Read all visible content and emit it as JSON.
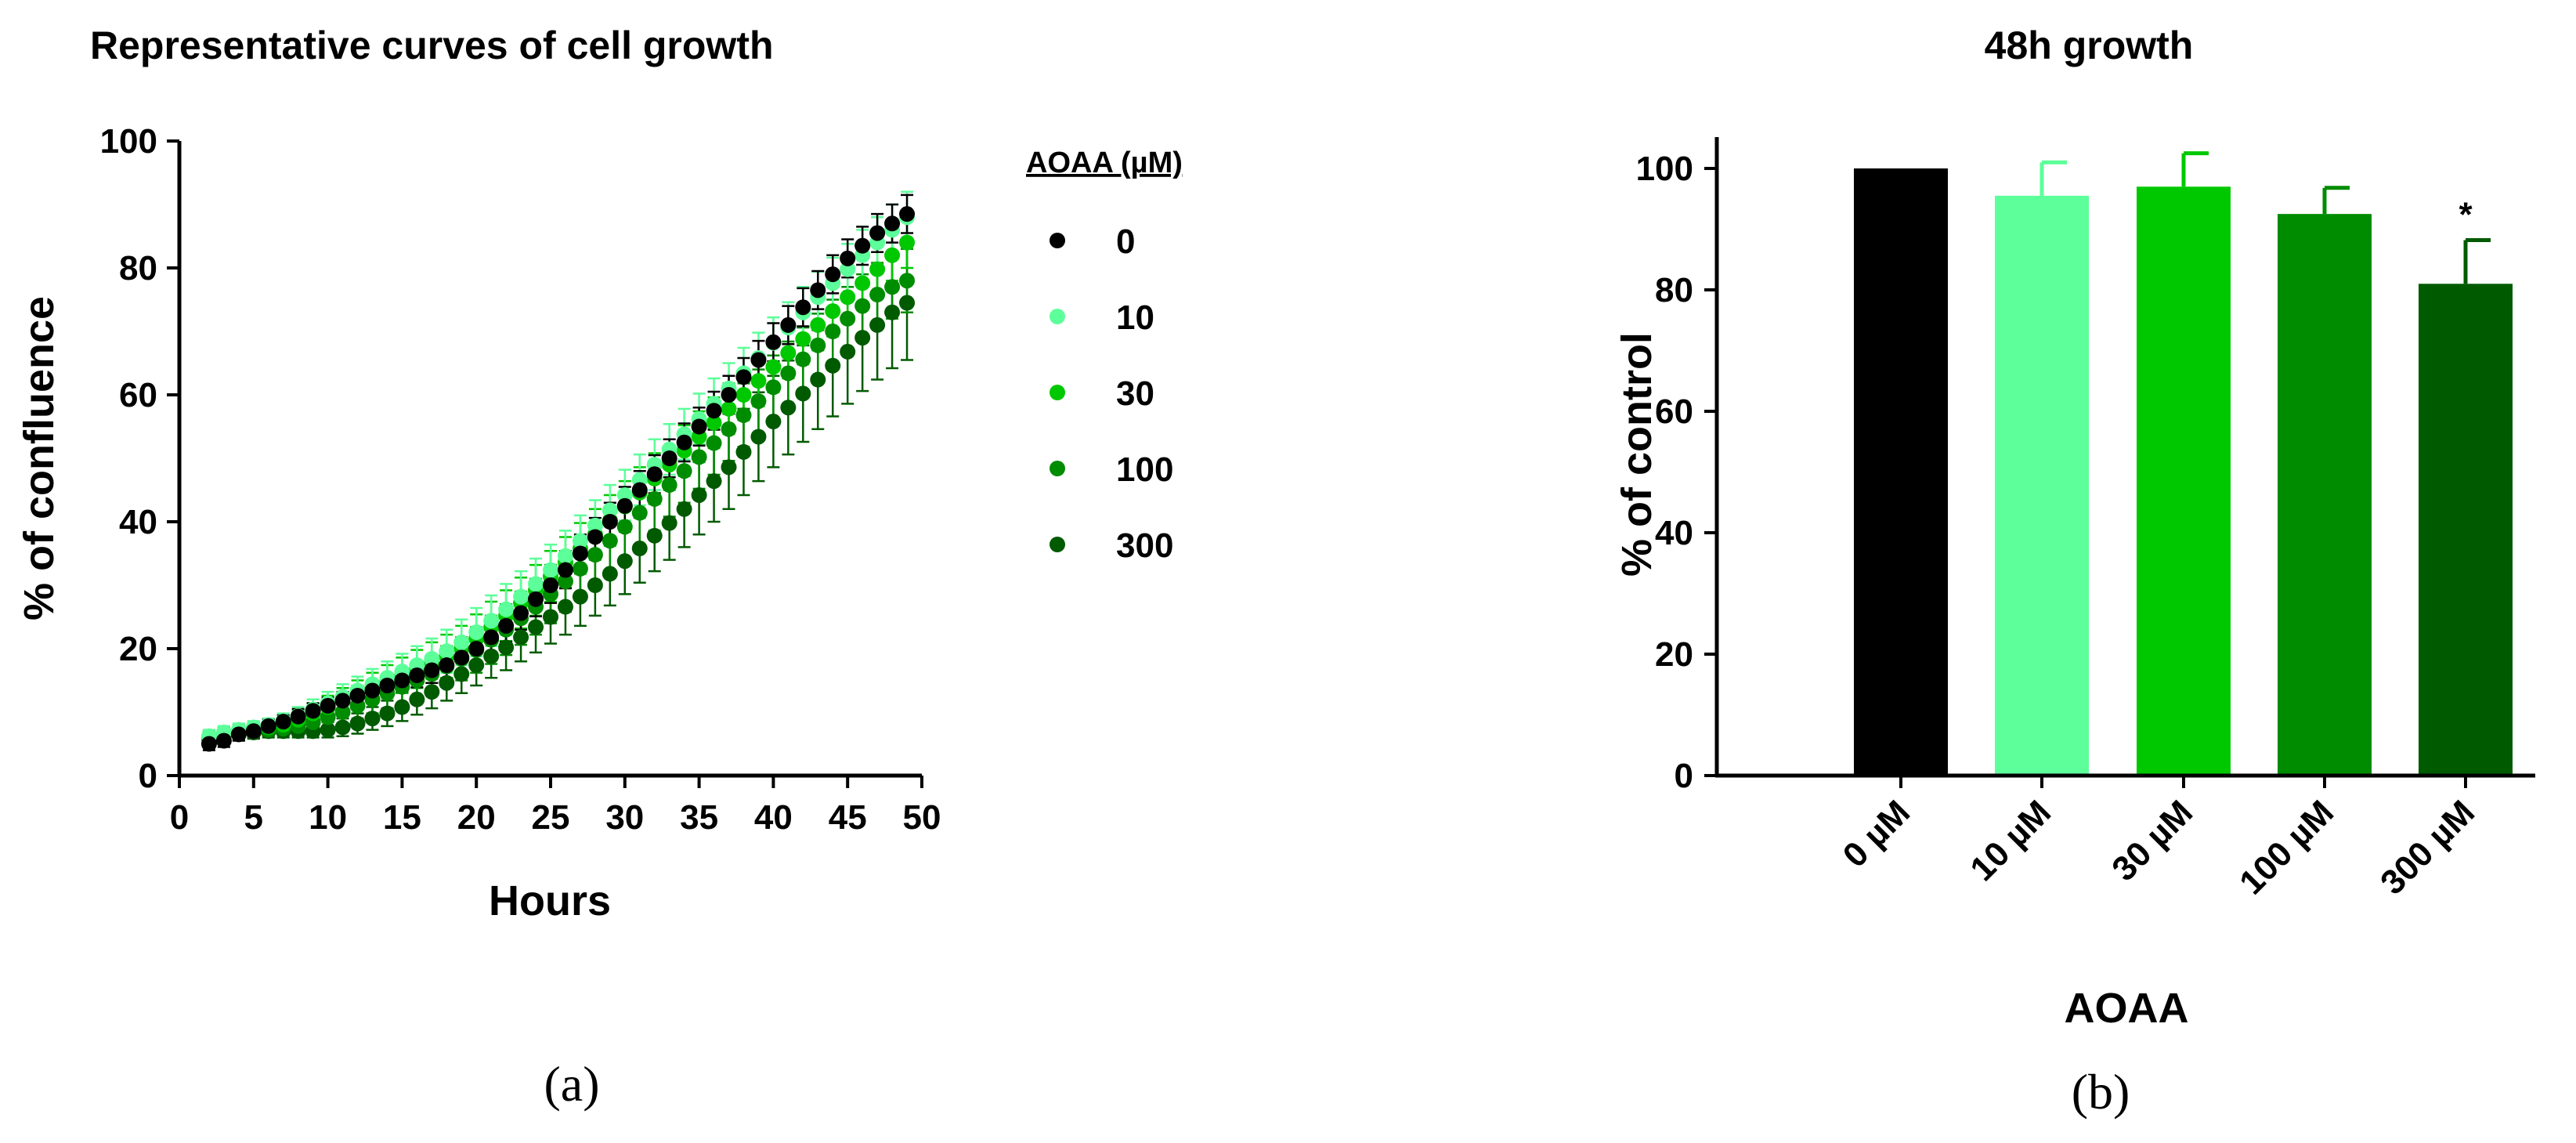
{
  "chart_data": [
    {
      "type": "scatter",
      "title": "Representative curves of cell growth",
      "xlabel": "Hours",
      "ylabel": "% of confluence",
      "xlim": [
        0,
        50
      ],
      "ylim": [
        0,
        100
      ],
      "x_ticks": [
        0,
        5,
        10,
        15,
        20,
        25,
        30,
        35,
        40,
        45,
        50
      ],
      "y_ticks": [
        0,
        20,
        40,
        60,
        80,
        100
      ],
      "legend_title": "AOAA (µM)",
      "legend_position": "right",
      "x": [
        2,
        3,
        4,
        5,
        6,
        7,
        8,
        9,
        10,
        11,
        12,
        13,
        14,
        15,
        16,
        17,
        18,
        19,
        20,
        21,
        22,
        23,
        24,
        25,
        26,
        27,
        28,
        29,
        30,
        31,
        32,
        33,
        34,
        35,
        36,
        37,
        38,
        39,
        40,
        41,
        42,
        43,
        44,
        45,
        46,
        47,
        48,
        49
      ],
      "series": [
        {
          "name": "0",
          "color": "#000000",
          "values": [
            5.0,
            5.5,
            6.5,
            7.0,
            7.8,
            8.5,
            9.3,
            10.2,
            11.0,
            11.8,
            12.6,
            13.4,
            14.2,
            15.0,
            15.8,
            16.6,
            17.4,
            18.6,
            20.0,
            21.8,
            23.6,
            25.6,
            27.8,
            30.0,
            32.4,
            35.0,
            37.6,
            40.0,
            42.5,
            45.0,
            47.5,
            50.0,
            52.5,
            55.0,
            57.5,
            60.0,
            62.8,
            65.5,
            68.3,
            71.0,
            73.8,
            76.5,
            79.0,
            81.5,
            83.5,
            85.5,
            87.0,
            88.5
          ],
          "errors": [
            1.0,
            1.0,
            1.0,
            1.0,
            1.0,
            1.0,
            1.2,
            1.2,
            1.3,
            1.4,
            1.5,
            1.6,
            1.7,
            1.8,
            1.9,
            2.0,
            2.1,
            2.2,
            2.3,
            2.4,
            2.5,
            2.6,
            2.7,
            2.8,
            2.9,
            3.0,
            3.0,
            3.0,
            3.0,
            3.0,
            3.0,
            3.0,
            3.0,
            3.0,
            3.0,
            3.0,
            3.0,
            3.0,
            3.0,
            3.0,
            3.0,
            3.0,
            3.0,
            3.0,
            3.0,
            3.0,
            3.0,
            3.0
          ]
        },
        {
          "name": "10",
          "color": "#5cff99",
          "values": [
            6.2,
            6.8,
            7.2,
            7.6,
            8.0,
            8.6,
            9.4,
            10.4,
            11.4,
            12.4,
            13.4,
            14.4,
            15.4,
            16.4,
            17.4,
            18.4,
            19.6,
            21.0,
            22.6,
            24.4,
            26.2,
            28.2,
            30.2,
            32.4,
            34.6,
            37.0,
            39.4,
            41.8,
            44.2,
            46.6,
            49.0,
            51.4,
            53.8,
            56.2,
            58.6,
            61.0,
            63.4,
            65.8,
            68.2,
            70.6,
            73.0,
            75.4,
            77.6,
            79.8,
            82.0,
            84.0,
            86.0,
            88.0
          ],
          "errors": [
            1.0,
            1.0,
            1.0,
            1.0,
            1.0,
            1.2,
            1.4,
            1.6,
            1.8,
            2.0,
            2.2,
            2.4,
            2.6,
            2.8,
            3.0,
            3.2,
            3.4,
            3.6,
            3.8,
            4.0,
            4.0,
            4.0,
            4.0,
            4.0,
            4.0,
            4.0,
            4.0,
            4.0,
            4.0,
            4.0,
            4.0,
            4.0,
            4.0,
            4.0,
            4.0,
            4.0,
            4.0,
            4.0,
            4.0,
            4.0,
            4.0,
            4.0,
            4.0,
            4.0,
            4.0,
            4.0,
            4.0,
            4.0
          ]
        },
        {
          "name": "30",
          "color": "#00c800",
          "values": [
            6.0,
            6.6,
            7.0,
            7.3,
            7.6,
            8.0,
            8.8,
            9.8,
            10.8,
            11.8,
            12.8,
            13.8,
            14.8,
            15.8,
            16.8,
            17.8,
            18.8,
            20.0,
            21.6,
            23.4,
            25.2,
            27.2,
            29.2,
            31.4,
            33.6,
            35.8,
            38.0,
            40.2,
            42.4,
            44.6,
            46.8,
            49.0,
            51.2,
            53.4,
            55.6,
            57.8,
            60.0,
            62.2,
            64.4,
            66.6,
            68.8,
            71.0,
            73.2,
            75.4,
            77.6,
            79.8,
            82.0,
            84.0
          ],
          "errors": [
            1.0,
            1.0,
            1.0,
            1.0,
            1.0,
            1.2,
            1.4,
            1.6,
            1.8,
            2.0,
            2.2,
            2.4,
            2.6,
            2.8,
            3.0,
            3.2,
            3.4,
            3.6,
            3.8,
            4.0,
            4.0,
            4.0,
            4.0,
            4.0,
            4.0,
            4.0,
            4.0,
            4.0,
            4.0,
            4.0,
            4.0,
            4.0,
            4.0,
            4.0,
            4.0,
            4.0,
            4.0,
            4.0,
            4.0,
            4.0,
            4.0,
            4.0,
            4.0,
            4.0,
            4.0,
            4.0,
            4.0,
            4.0
          ]
        },
        {
          "name": "100",
          "color": "#008c00",
          "values": [
            6.0,
            6.5,
            6.8,
            7.0,
            7.2,
            7.4,
            7.8,
            8.4,
            9.2,
            10.0,
            11.0,
            12.0,
            13.0,
            14.0,
            15.0,
            16.0,
            17.2,
            18.4,
            19.8,
            21.4,
            23.0,
            24.8,
            26.6,
            28.6,
            30.6,
            32.6,
            34.8,
            37.0,
            39.2,
            41.4,
            43.6,
            45.8,
            48.0,
            50.2,
            52.4,
            54.6,
            56.8,
            59.0,
            61.2,
            63.4,
            65.6,
            67.8,
            70.0,
            72.0,
            74.0,
            75.8,
            77.0,
            78.0
          ],
          "errors": [
            1.0,
            1.0,
            1.0,
            1.0,
            1.0,
            1.0,
            1.2,
            1.4,
            1.6,
            1.8,
            2.0,
            2.2,
            2.4,
            2.6,
            2.8,
            3.0,
            3.2,
            3.4,
            3.6,
            3.8,
            4.0,
            4.2,
            4.4,
            4.6,
            4.8,
            5.0,
            5.0,
            5.0,
            5.0,
            5.0,
            5.0,
            5.0,
            5.0,
            5.0,
            5.0,
            5.0,
            5.0,
            5.0,
            5.0,
            5.0,
            5.0,
            5.0,
            5.0,
            5.0,
            5.0,
            5.0,
            5.0,
            5.0
          ]
        },
        {
          "name": "300",
          "color": "#005a00",
          "values": [
            5.8,
            6.4,
            6.6,
            6.8,
            7.0,
            7.0,
            7.0,
            7.0,
            7.2,
            7.6,
            8.2,
            9.0,
            9.8,
            10.8,
            12.0,
            13.2,
            14.6,
            16.0,
            17.4,
            18.8,
            20.2,
            21.8,
            23.4,
            25.0,
            26.6,
            28.2,
            30.0,
            31.8,
            33.8,
            35.8,
            37.8,
            39.8,
            42.0,
            44.2,
            46.4,
            48.6,
            51.0,
            53.4,
            55.8,
            58.0,
            60.2,
            62.4,
            64.6,
            66.8,
            69.0,
            71.0,
            73.0,
            74.5
          ],
          "errors": [
            1.0,
            1.0,
            1.0,
            1.0,
            1.0,
            1.0,
            1.0,
            1.0,
            1.2,
            1.4,
            1.6,
            1.8,
            2.0,
            2.2,
            2.4,
            2.6,
            2.8,
            3.0,
            3.2,
            3.4,
            3.6,
            3.8,
            4.0,
            4.2,
            4.4,
            4.6,
            4.8,
            5.0,
            5.2,
            5.4,
            5.6,
            5.8,
            6.0,
            6.2,
            6.4,
            6.6,
            6.8,
            7.0,
            7.2,
            7.4,
            7.6,
            7.8,
            8.0,
            8.2,
            8.4,
            8.6,
            8.8,
            9.0
          ]
        }
      ]
    },
    {
      "type": "bar",
      "title": "48h growth",
      "xlabel": "AOAA",
      "ylabel": "% of control",
      "ylim": [
        0,
        105
      ],
      "y_ticks": [
        0,
        20,
        40,
        60,
        80,
        100
      ],
      "categories": [
        "0 µM",
        "10 µM",
        "30 µM",
        "100 µM",
        "300 µM"
      ],
      "values": [
        100,
        95.5,
        97,
        92.5,
        81
      ],
      "errors": [
        0,
        5.5,
        5.5,
        4.3,
        7.2
      ],
      "colors": [
        "#000000",
        "#5cff99",
        "#00c800",
        "#008c00",
        "#005a00"
      ],
      "annotations": [
        "",
        "",
        "",
        "",
        "*"
      ]
    }
  ],
  "panel_labels": [
    "(a)",
    "(b)"
  ]
}
